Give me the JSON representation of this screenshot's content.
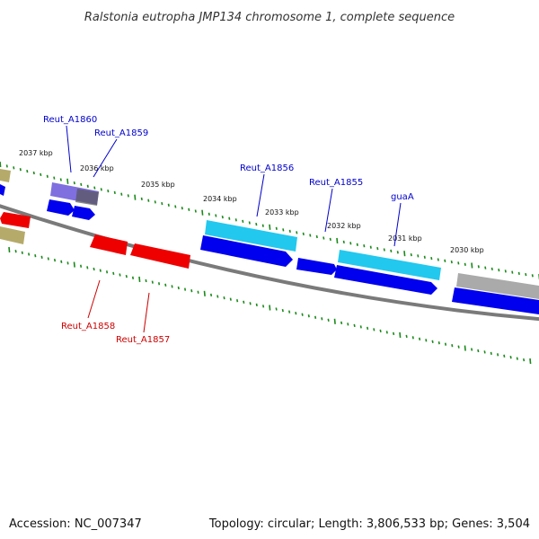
{
  "title": "Ralstonia eutropha JMP134 chromosome 1, complete sequence",
  "footer": {
    "accession": "Accession: NC_007347",
    "summary": "Topology: circular; Length: 3,806,533 bp; Genes: 3,504"
  },
  "colors": {
    "backbone": "#7a7a7a",
    "ticks": "#1a8a1a",
    "forward_gene": "#0000ee",
    "reverse_gene": "#ee0000",
    "cyan_gene": "#22c8ee",
    "gray_gene": "#aaaaaa",
    "olive_gene": "#b5aa6a",
    "purple_gene": "#7f6fdf",
    "label_forward": "#0000cc",
    "label_reverse": "#cc0000"
  },
  "kbp_labels": [
    "2037 kbp",
    "2036 kbp",
    "2035 kbp",
    "2034 kbp",
    "2033 kbp",
    "2032 kbp",
    "2031 kbp",
    "2030 kbp"
  ],
  "gene_labels": [
    {
      "text": "Reut_A1860",
      "strand": "forward"
    },
    {
      "text": "Reut_A1859",
      "strand": "forward"
    },
    {
      "text": "Reut_A1856",
      "strand": "forward"
    },
    {
      "text": "Reut_A1855",
      "strand": "forward"
    },
    {
      "text": "guaA",
      "strand": "forward"
    },
    {
      "text": "Reut_A1858",
      "strand": "reverse"
    },
    {
      "text": "Reut_A1857",
      "strand": "reverse"
    }
  ]
}
